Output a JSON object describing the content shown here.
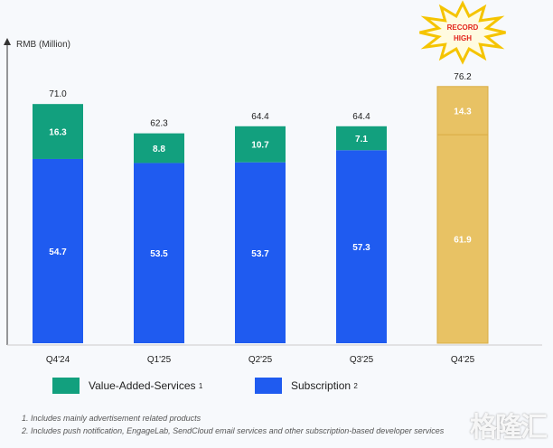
{
  "chart_data": {
    "type": "bar",
    "stacked": true,
    "ylabel": "RMB (Million)",
    "categories": [
      "Q4'24",
      "Q1'25",
      "Q2'25",
      "Q3'25",
      "Q4'25"
    ],
    "series": [
      {
        "name": "Subscription",
        "sup": "2",
        "color": "#1f5bf0",
        "values": [
          54.7,
          53.5,
          53.7,
          57.3,
          61.9
        ]
      },
      {
        "name": "Value-Added-Services",
        "sup": "1",
        "color": "#12a07e",
        "values": [
          16.3,
          8.8,
          10.7,
          7.1,
          14.3
        ]
      }
    ],
    "totals": [
      "71.0",
      "62.3",
      "64.4",
      "64.4",
      "76.2"
    ],
    "highlight": {
      "index": 4,
      "color": "#e8c264",
      "badge": [
        "RECORD",
        "HIGH"
      ]
    }
  },
  "footnotes": [
    "1. Includes mainly advertisement related products",
    "2. Includes push notification, EngageLab, SendCloud email services and other subscription-based developer services"
  ],
  "watermark": "格隆汇"
}
